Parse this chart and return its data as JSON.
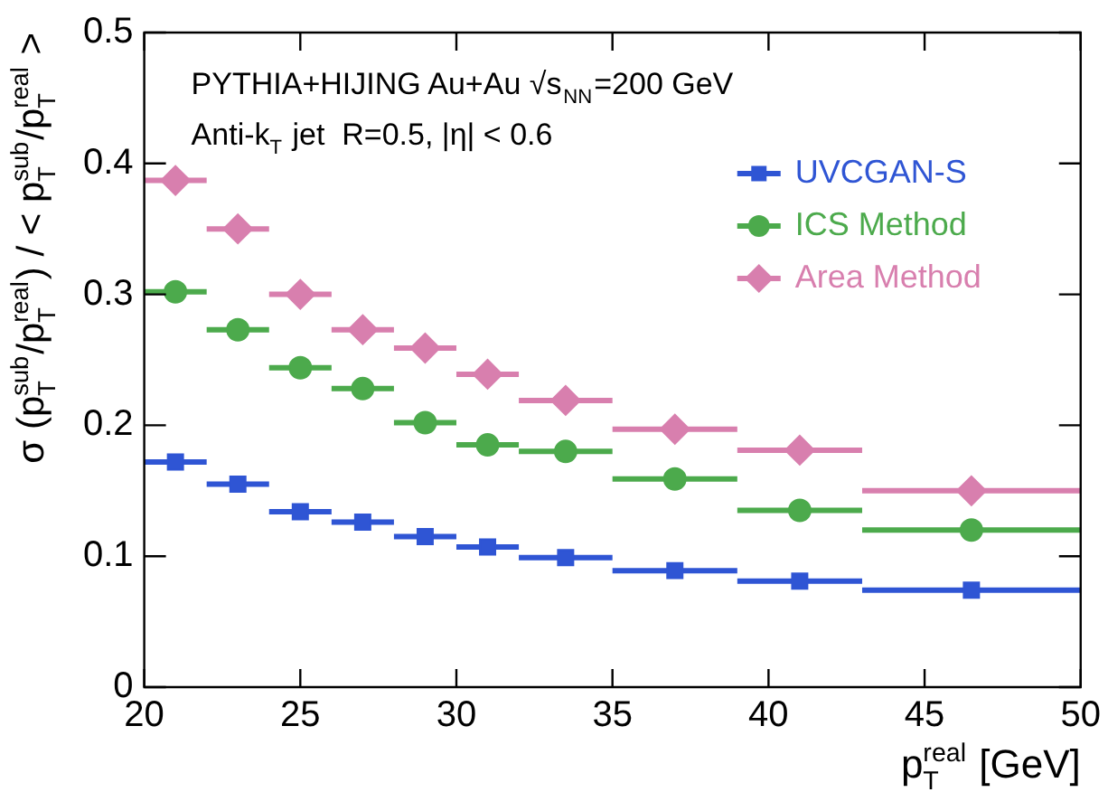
{
  "chart_data": {
    "type": "scatter",
    "xlabel": "p$_{T}$$^{real}$ [GeV]",
    "ylabel": "σ (p$_{T}$$^{sub}$/p$_{T}$$^{real}$) / < p$_{T}$$^{sub}$/p$_{T}$$^{real}$ >",
    "annotations": [
      "PYTHIA+HIJING Au+Au √s$_{NN}$=200 GeV",
      "Anti-k$_{T}$ jet  R=0.5, |η| < 0.6"
    ],
    "x": [
      21,
      23,
      25,
      27,
      29,
      31,
      33.5,
      37,
      41,
      46.5
    ],
    "series": [
      {
        "name": "UVCGAN-S",
        "color": "#2f55d4",
        "marker": "square",
        "xerrors": [
          1,
          1,
          1,
          1,
          1,
          1,
          1.5,
          2,
          2,
          3.5
        ],
        "values": [
          0.172,
          0.155,
          0.134,
          0.126,
          0.115,
          0.107,
          0.099,
          0.089,
          0.081,
          0.074
        ]
      },
      {
        "name": "ICS Method",
        "color": "#4caa4c",
        "marker": "circle",
        "xerrors": [
          1,
          1,
          1,
          1,
          1,
          1,
          1.5,
          2,
          2,
          3.5
        ],
        "values": [
          0.302,
          0.273,
          0.244,
          0.228,
          0.202,
          0.185,
          0.18,
          0.159,
          0.135,
          0.12
        ]
      },
      {
        "name": "Area Method",
        "color": "#d87fae",
        "marker": "diamond",
        "xerrors": [
          1,
          1,
          1,
          1,
          1,
          1,
          1.5,
          2,
          2,
          3.5
        ],
        "values": [
          0.387,
          0.35,
          0.3,
          0.273,
          0.259,
          0.239,
          0.219,
          0.197,
          0.181,
          0.15
        ]
      }
    ],
    "xlim": [
      20,
      50
    ],
    "xticks": [
      20,
      25,
      30,
      35,
      40,
      45,
      50
    ],
    "ylim": [
      0,
      0.5
    ],
    "yticks": [
      0,
      0.1,
      0.2,
      0.3,
      0.4,
      0.5
    ],
    "grid": false,
    "legend": "top right"
  }
}
